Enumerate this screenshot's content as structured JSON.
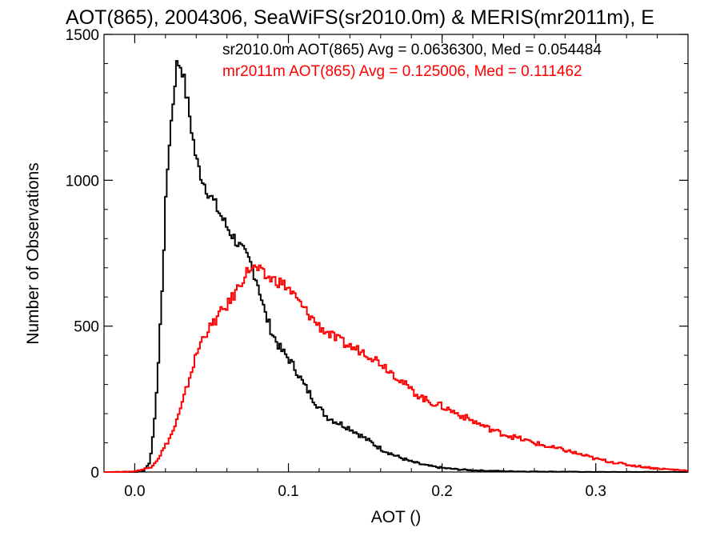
{
  "chart_data": {
    "type": "line",
    "title": "AOT(865), 2004306, SeaWiFS(sr2010.0m) & MERIS(mr2011m), E",
    "xlabel": "AOT ()",
    "ylabel": "Number of Observations",
    "xlim": [
      -0.02,
      0.36
    ],
    "ylim": [
      0,
      1500
    ],
    "xticks": [
      0.0,
      0.1,
      0.2,
      0.3
    ],
    "xtick_labels": [
      "0.0",
      "0.1",
      "0.2",
      "0.3"
    ],
    "yticks": [
      0,
      500,
      1000,
      1500
    ],
    "ytick_labels": [
      "0",
      "500",
      "1000",
      "1500"
    ],
    "grid": false,
    "legend_placement": "top-right",
    "series": [
      {
        "name": "sr2010.0m",
        "color": "#000000",
        "annotation": "sr2010.0m AOT(865) Avg = 0.0636300, Med = 0.054484",
        "x": [
          -0.01,
          0.0,
          0.005,
          0.008,
          0.01,
          0.012,
          0.015,
          0.018,
          0.02,
          0.022,
          0.025,
          0.027,
          0.029,
          0.031,
          0.033,
          0.035,
          0.038,
          0.04,
          0.043,
          0.046,
          0.05,
          0.055,
          0.06,
          0.065,
          0.07,
          0.075,
          0.08,
          0.085,
          0.09,
          0.095,
          0.1,
          0.105,
          0.11,
          0.115,
          0.12,
          0.125,
          0.13,
          0.14,
          0.15,
          0.16,
          0.17,
          0.18,
          0.19,
          0.2,
          0.21,
          0.22,
          0.23,
          0.25,
          0.28,
          0.3,
          0.33,
          0.36
        ],
        "y": [
          0,
          0,
          3,
          15,
          40,
          120,
          330,
          650,
          900,
          1100,
          1270,
          1390,
          1405,
          1380,
          1310,
          1250,
          1140,
          1070,
          1020,
          980,
          940,
          890,
          840,
          800,
          760,
          720,
          650,
          540,
          470,
          420,
          390,
          350,
          300,
          260,
          220,
          190,
          175,
          150,
          115,
          80,
          55,
          35,
          22,
          14,
          9,
          6,
          4,
          2,
          1,
          0,
          0,
          0
        ]
      },
      {
        "name": "mr2011m",
        "color": "#ff0000",
        "annotation": "mr2011m AOT(865) Avg = 0.125006, Med = 0.111462",
        "x": [
          -0.01,
          0.0,
          0.01,
          0.015,
          0.02,
          0.025,
          0.03,
          0.035,
          0.04,
          0.045,
          0.05,
          0.055,
          0.06,
          0.065,
          0.07,
          0.075,
          0.08,
          0.085,
          0.09,
          0.095,
          0.1,
          0.11,
          0.12,
          0.13,
          0.14,
          0.15,
          0.16,
          0.17,
          0.18,
          0.19,
          0.2,
          0.21,
          0.22,
          0.23,
          0.24,
          0.25,
          0.26,
          0.27,
          0.28,
          0.29,
          0.3,
          0.32,
          0.34,
          0.36
        ],
        "y": [
          0,
          2,
          15,
          45,
          90,
          140,
          215,
          310,
          400,
          470,
          500,
          540,
          570,
          610,
          660,
          700,
          695,
          670,
          660,
          650,
          630,
          560,
          500,
          460,
          430,
          410,
          375,
          330,
          280,
          245,
          225,
          200,
          175,
          150,
          130,
          115,
          100,
          85,
          75,
          60,
          45,
          25,
          12,
          5
        ]
      }
    ]
  }
}
